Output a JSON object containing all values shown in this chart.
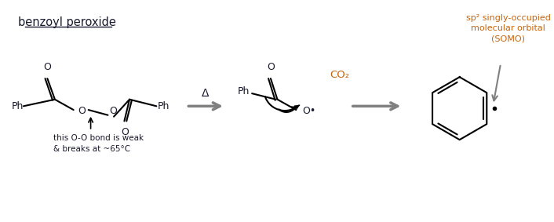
{
  "bg_color": "#ffffff",
  "title_text": "benzoyl peroxide",
  "annotation_text": "this O-O bond is weak\n& breaks at ~65°C",
  "somo_text": "sp² singly-occupied\nmolecular orbital\n(SOMO)",
  "co2_text": "CO₂",
  "delta_text": "Δ",
  "font_color": "#1a1a2e",
  "arrow_color": "#808080",
  "black": "#000000",
  "orange_text": "#c8640a"
}
